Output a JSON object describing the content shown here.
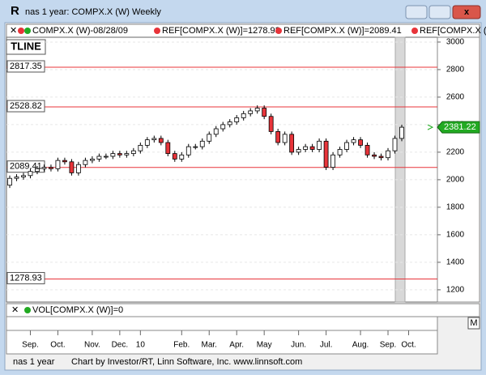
{
  "window": {
    "title": "nas 1 year: COMPX.X (W) Weekly",
    "legend": [
      "COMPX.X (W)-08/28/09",
      "REF[COMPX.X (W)]=1278.93",
      "REF[COMPX.X (W)]=2089.41",
      "REF[COMPX.X (W)"
    ],
    "tline": "TLINE",
    "volume_legend": "VOL[COMPX.X (W)]=0",
    "menu_button": "M",
    "footer_name": "nas 1 year",
    "footer_credit": "Chart by Investor/RT, Linn Software, Inc. www.linnsoft.com"
  },
  "chart_data": {
    "type": "candlestick",
    "categories": [
      null,
      null,
      null,
      "Sep.",
      null,
      null,
      null,
      "Oct.",
      null,
      null,
      null,
      null,
      "Nov.",
      null,
      null,
      null,
      "Dec.",
      null,
      null,
      "10",
      null,
      null,
      null,
      null,
      null,
      "Feb.",
      null,
      null,
      null,
      "Mar.",
      null,
      null,
      null,
      "Apr.",
      null,
      null,
      null,
      "May",
      null,
      null,
      null,
      null,
      "Jun.",
      null,
      null,
      null,
      "Jul.",
      null,
      null,
      null,
      null,
      "Aug.",
      null,
      null,
      null,
      "Sep.",
      null,
      null,
      "Oct."
    ],
    "open": [
      1960,
      2010,
      2020,
      2030,
      2060,
      2080,
      2090,
      2080,
      2140,
      2130,
      2050,
      2110,
      2140,
      2150,
      2170,
      2170,
      2190,
      2180,
      2190,
      2210,
      2250,
      2290,
      2300,
      2270,
      2190,
      2150,
      2180,
      2240,
      2240,
      2280,
      2330,
      2370,
      2400,
      2420,
      2450,
      2480,
      2500,
      2520,
      2460,
      2350,
      2270,
      2330,
      2200,
      2220,
      2240,
      2220,
      2280,
      2090,
      2180,
      2220,
      2270,
      2290,
      2250,
      2180,
      2170,
      2160,
      2210,
      2300,
      null
    ],
    "high": [
      2030,
      2040,
      2050,
      2080,
      2100,
      2110,
      2110,
      2160,
      2160,
      2150,
      2130,
      2160,
      2170,
      2190,
      2190,
      2210,
      2210,
      2210,
      2230,
      2270,
      2310,
      2320,
      2320,
      2290,
      2210,
      2200,
      2260,
      2260,
      2300,
      2350,
      2390,
      2420,
      2440,
      2470,
      2500,
      2520,
      2540,
      2540,
      2480,
      2370,
      2350,
      2350,
      2240,
      2260,
      2260,
      2300,
      2300,
      2200,
      2240,
      2290,
      2310,
      2310,
      2270,
      2200,
      2190,
      2230,
      2320,
      2400,
      null
    ],
    "low": [
      1940,
      1990,
      2000,
      2010,
      2040,
      2060,
      2060,
      2060,
      2110,
      2030,
      2030,
      2090,
      2120,
      2130,
      2150,
      2150,
      2160,
      2160,
      2170,
      2190,
      2230,
      2270,
      2250,
      2170,
      2130,
      2130,
      2160,
      2220,
      2220,
      2260,
      2310,
      2350,
      2380,
      2400,
      2430,
      2460,
      2480,
      2440,
      2330,
      2250,
      2250,
      2180,
      2180,
      2200,
      2200,
      2200,
      2070,
      2070,
      2160,
      2200,
      2250,
      2230,
      2160,
      2150,
      2140,
      2140,
      2190,
      2280,
      null
    ],
    "close": [
      2010,
      2020,
      2030,
      2060,
      2080,
      2090,
      2080,
      2140,
      2130,
      2050,
      2110,
      2140,
      2150,
      2170,
      2170,
      2190,
      2180,
      2190,
      2210,
      2250,
      2290,
      2300,
      2270,
      2190,
      2150,
      2180,
      2240,
      2240,
      2280,
      2330,
      2370,
      2400,
      2420,
      2450,
      2480,
      2500,
      2520,
      2460,
      2350,
      2270,
      2330,
      2200,
      2220,
      2240,
      2220,
      2280,
      2090,
      2180,
      2220,
      2270,
      2290,
      2250,
      2180,
      2170,
      2160,
      2210,
      2300,
      2381.22,
      null
    ],
    "up_color": "#ffffff",
    "down_color": "#e8343a",
    "ref_lines": [
      2817.35,
      2528.82,
      2089.41,
      1278.93
    ],
    "ref_color": "#e8343a",
    "ylim": [
      1111,
      3035
    ],
    "yticks": [
      1200,
      1400,
      1600,
      1800,
      2000,
      2200,
      2400,
      2600,
      2800,
      3000
    ],
    "grid": true
  }
}
